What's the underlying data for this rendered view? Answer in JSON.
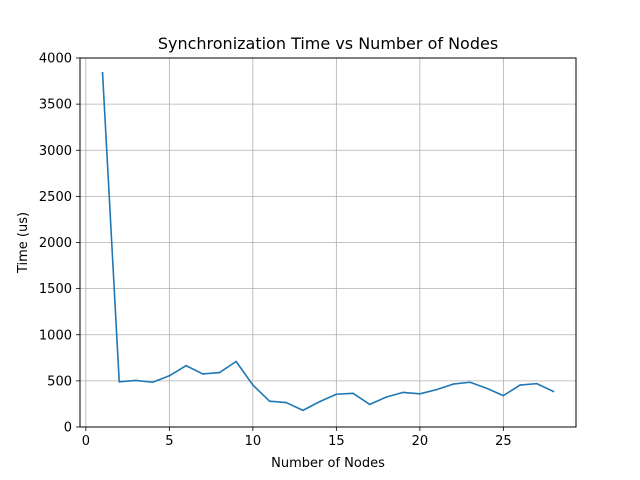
{
  "chart_data": {
    "type": "line",
    "title": "Synchronization Time vs Number of Nodes",
    "xlabel": "Number of Nodes",
    "ylabel": "Time (us)",
    "xlim": [
      -0.35,
      29.35
    ],
    "ylim": [
      0,
      4000
    ],
    "xticks": [
      0,
      5,
      10,
      15,
      20,
      25
    ],
    "yticks": [
      0,
      500,
      1000,
      1500,
      2000,
      2500,
      3000,
      3500,
      4000
    ],
    "grid": true,
    "series": [
      {
        "color": "#1f77b4",
        "x": [
          1,
          2,
          3,
          4,
          5,
          6,
          7,
          8,
          9,
          10,
          11,
          12,
          13,
          14,
          15,
          16,
          17,
          18,
          19,
          20,
          21,
          22,
          23,
          24,
          25,
          26,
          27,
          28
        ],
        "y": [
          3840,
          490,
          505,
          485,
          555,
          665,
          575,
          590,
          710,
          455,
          280,
          265,
          180,
          275,
          355,
          365,
          245,
          325,
          375,
          360,
          405,
          465,
          485,
          420,
          340,
          455,
          470,
          385
        ]
      }
    ]
  }
}
